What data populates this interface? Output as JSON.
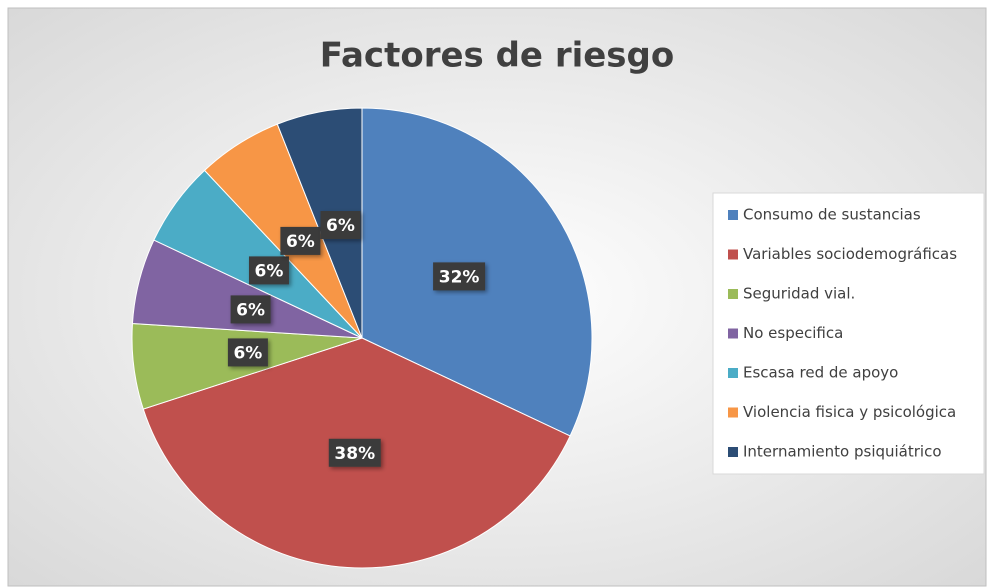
{
  "chart_data": {
    "type": "pie",
    "title": "Factores de riesgo",
    "categories": [
      "Consumo de sustancias",
      "Variables sociodemográficas",
      "Seguridad vial.",
      "No especifica",
      "Escasa red de apoyo",
      "Violencia fisica y psicológica",
      "Internamiento psiquiátrico"
    ],
    "values": [
      32,
      38,
      6,
      6,
      6,
      6,
      6
    ],
    "value_labels": [
      "32%",
      "38%",
      "6%",
      "6%",
      "6%",
      "6%",
      "6%"
    ],
    "colors": [
      "#4f81bd",
      "#c0504d",
      "#9bbb59",
      "#8064a2",
      "#4bacc6",
      "#f79646",
      "#2c4d75"
    ],
    "legend": "right"
  }
}
